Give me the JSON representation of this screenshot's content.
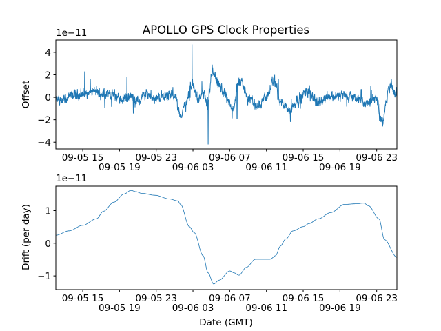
{
  "chart_data": [
    {
      "type": "line",
      "title": "APOLLO GPS Clock Properties",
      "ylabel": "Offset",
      "xlabel": "",
      "y_scale_label": "1e−11",
      "x_units": "hours since 09-05 00:00 GMT",
      "xlim": [
        12.07,
        49.2
      ],
      "ylim": [
        -4.6,
        5.1
      ],
      "yticks": [
        -4,
        -2,
        0,
        2,
        4
      ],
      "ytick_labels": [
        "−4",
        "−2",
        "0",
        "2",
        "4"
      ],
      "xticks": [
        15,
        19,
        23,
        27,
        31,
        35,
        39,
        43,
        47
      ],
      "xtick_labels": [
        "09-05 15",
        "09-05 19",
        "09-05 23",
        "09-06 03",
        "09-06 07",
        "09-06 11",
        "09-06 15",
        "09-06 19",
        "09-06 23"
      ],
      "color": "#1f77b4",
      "noise_amplitude": 0.45,
      "trend": [
        [
          12.07,
          -0.3
        ],
        [
          13,
          -0.2
        ],
        [
          14,
          0.2
        ],
        [
          15,
          0.3
        ],
        [
          16,
          0.5
        ],
        [
          17,
          0.4
        ],
        [
          18,
          0.3
        ],
        [
          19,
          -0.1
        ],
        [
          20,
          0.0
        ],
        [
          21,
          -0.3
        ],
        [
          22,
          0.3
        ],
        [
          23,
          -0.1
        ],
        [
          24,
          0.2
        ],
        [
          25,
          0.2
        ],
        [
          25.6,
          -1.6
        ],
        [
          26.3,
          -0.5
        ],
        [
          26.9,
          1.2
        ],
        [
          27.5,
          -0.2
        ],
        [
          28.2,
          0.3
        ],
        [
          28.6,
          -1.0
        ],
        [
          29.1,
          2.2
        ],
        [
          29.8,
          1.0
        ],
        [
          30.5,
          0.3
        ],
        [
          31.25,
          -1.1
        ],
        [
          32.1,
          1.5
        ],
        [
          33.2,
          -0.2
        ],
        [
          34,
          -0.8
        ],
        [
          34.9,
          0.0
        ],
        [
          35.9,
          1.4
        ],
        [
          36.5,
          -0.5
        ],
        [
          37.5,
          -1.2
        ],
        [
          38.4,
          -0.2
        ],
        [
          39.6,
          0.6
        ],
        [
          40.6,
          -0.5
        ],
        [
          41.6,
          0.1
        ],
        [
          43.4,
          0.1
        ],
        [
          44.4,
          0.0
        ],
        [
          45.9,
          -0.6
        ],
        [
          46.9,
          0.0
        ],
        [
          47.6,
          -2.2
        ],
        [
          48.4,
          0.9
        ],
        [
          49.2,
          0.3
        ]
      ],
      "spikes": [
        [
          15.2,
          2.3
        ],
        [
          19.8,
          1.8
        ],
        [
          26.9,
          4.7
        ],
        [
          28.65,
          -4.2
        ],
        [
          29.1,
          2.9
        ],
        [
          31.8,
          -1.9
        ],
        [
          35.9,
          2.0
        ],
        [
          36.3,
          1.6
        ],
        [
          37.6,
          -2.2
        ],
        [
          47.65,
          -2.6
        ],
        [
          48.6,
          1.6
        ]
      ]
    },
    {
      "type": "line",
      "title": "",
      "ylabel": "Drift (per day)",
      "xlabel": "Date (GMT)",
      "y_scale_label": "1e−11",
      "x_units": "hours since 09-05 00:00 GMT",
      "xlim": [
        12.07,
        49.2
      ],
      "ylim": [
        -1.42,
        1.75
      ],
      "yticks": [
        -1,
        0,
        1
      ],
      "ytick_labels": [
        "−1",
        "0",
        "1"
      ],
      "xticks": [
        15,
        19,
        23,
        27,
        31,
        35,
        39,
        43,
        47
      ],
      "xtick_labels": [
        "09-05 15",
        "09-05 19",
        "09-05 23",
        "09-06 03",
        "09-06 07",
        "09-06 11",
        "09-06 15",
        "09-06 19",
        "09-06 23"
      ],
      "color": "#1f77b4",
      "points": [
        [
          12.07,
          0.245
        ],
        [
          13.5,
          0.38
        ],
        [
          15,
          0.55
        ],
        [
          16.5,
          0.75
        ],
        [
          17.25,
          0.98
        ],
        [
          18.4,
          1.26
        ],
        [
          19.5,
          1.51
        ],
        [
          20.25,
          1.62
        ],
        [
          20.8,
          1.58
        ],
        [
          21.4,
          1.53
        ],
        [
          22.9,
          1.47
        ],
        [
          24.4,
          1.36
        ],
        [
          25.35,
          1.3
        ],
        [
          25.65,
          1.19
        ],
        [
          26.6,
          0.51
        ],
        [
          27.15,
          0.32
        ],
        [
          28.1,
          -0.38
        ],
        [
          28.65,
          -0.91
        ],
        [
          29.25,
          -1.25
        ],
        [
          29.85,
          -1.13
        ],
        [
          31,
          -0.85
        ],
        [
          31.5,
          -0.91
        ],
        [
          32,
          -0.98
        ],
        [
          32.8,
          -0.74
        ],
        [
          33.8,
          -0.49
        ],
        [
          35.4,
          -0.49
        ],
        [
          36,
          -0.38
        ],
        [
          36.5,
          -0.09
        ],
        [
          37.1,
          0.13
        ],
        [
          37.9,
          0.38
        ],
        [
          39,
          0.51
        ],
        [
          39.6,
          0.6
        ],
        [
          40.65,
          0.75
        ],
        [
          42,
          0.94
        ],
        [
          43.5,
          1.19
        ],
        [
          44.85,
          1.21
        ],
        [
          45.6,
          1.23
        ],
        [
          46.1,
          1.15
        ],
        [
          47.25,
          0.75
        ],
        [
          47.85,
          0.11
        ],
        [
          49.2,
          -0.43
        ]
      ]
    }
  ]
}
